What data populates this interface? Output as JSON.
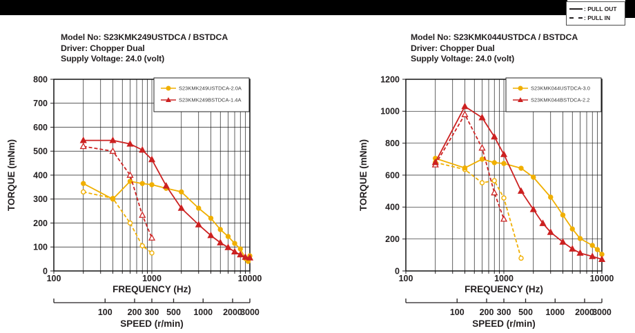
{
  "top_legend": {
    "pull_out_label": ": PULL OUT",
    "pull_in_label": ": PULL IN"
  },
  "colors": {
    "yellow": "#F0AF00",
    "red": "#CC2121",
    "text": "#231F20"
  },
  "chart_data": [
    {
      "type": "line",
      "title_lines": [
        "Model No: S23KMK249USTDCA / BSTDCA",
        "Driver: Chopper Dual",
        "Supply Voltage: 24.0 (volt)"
      ],
      "x_axis": {
        "label": "FREQUENCY (Hz)",
        "scale": "log",
        "min": 100,
        "max": 10000,
        "tick_labels": [
          100,
          1000,
          10000
        ]
      },
      "y_axis": {
        "label": "TORQUE (mNm)",
        "min": 0,
        "max": 800,
        "step": 100,
        "tick_labels": [
          0,
          100,
          200,
          300,
          400,
          500,
          600,
          700,
          800
        ]
      },
      "speed_axis": {
        "label": "SPEED (r/min)",
        "tick_labels": [
          100,
          200,
          300,
          500,
          1000,
          2000,
          3000
        ],
        "hz_per_rmin": 3.3333
      },
      "legend": [
        {
          "label": "S23KMK249USTDCA-2.0A",
          "color": "#F0AF00",
          "marker": "circle"
        },
        {
          "label": "S23KMK249BSTDCA-1.4A",
          "color": "#CC2121",
          "marker": "triangle"
        }
      ],
      "series": [
        {
          "name": "S23KMK249USTDCA-2.0A-pull-in",
          "pull": "PULL IN",
          "color": "#F0AF00",
          "style": "dashed",
          "marker": "circle",
          "fill": false,
          "x": [
            200,
            400,
            600,
            800,
            1000
          ],
          "y": [
            330,
            303,
            200,
            105,
            75
          ]
        },
        {
          "name": "S23KMK249USTDCA-2.0A-pull-out",
          "pull": "PULL OUT",
          "color": "#F0AF00",
          "style": "solid",
          "marker": "circle",
          "fill": true,
          "x": [
            200,
            400,
            600,
            800,
            1000,
            1400,
            2000,
            3000,
            4000,
            5000,
            6000,
            7000,
            8000,
            9000,
            9600,
            10000
          ],
          "y": [
            365,
            300,
            374,
            365,
            360,
            345,
            330,
            262,
            220,
            173,
            144,
            115,
            92,
            52,
            40,
            63
          ]
        },
        {
          "name": "S23KMK249BSTDCA-1.4A-pull-in",
          "pull": "PULL IN",
          "color": "#CC2121",
          "style": "dashed",
          "marker": "triangle",
          "fill": false,
          "x": [
            200,
            400,
            600,
            800,
            1000
          ],
          "y": [
            520,
            500,
            400,
            233,
            138
          ]
        },
        {
          "name": "S23KMK249BSTDCA-1.4A-pull-out",
          "pull": "PULL OUT",
          "color": "#CC2121",
          "style": "solid",
          "marker": "triangle",
          "fill": true,
          "x": [
            200,
            400,
            600,
            800,
            1000,
            1400,
            2000,
            3000,
            4000,
            5000,
            6000,
            7000,
            8000,
            9000,
            10000
          ],
          "y": [
            545,
            545,
            530,
            505,
            465,
            355,
            262,
            193,
            148,
            118,
            98,
            80,
            68,
            58,
            55
          ]
        }
      ]
    },
    {
      "type": "line",
      "title_lines": [
        "Model No: S23KMK044USTDCA / BSTDCA",
        "Driver: Chopper Dual",
        "Supply Voltage: 24.0 (volt)"
      ],
      "x_axis": {
        "label": "FREQUENCY (Hz)",
        "scale": "log",
        "min": 100,
        "max": 10000,
        "tick_labels": [
          100,
          1000,
          10000
        ]
      },
      "y_axis": {
        "label": "TORQUE (mNm)",
        "min": 0,
        "max": 1200,
        "step": 200,
        "tick_labels": [
          0,
          200,
          400,
          600,
          800,
          1000,
          1200
        ]
      },
      "speed_axis": {
        "label": "SPEED (r/min)",
        "tick_labels": [
          100,
          200,
          300,
          500,
          1000,
          2000,
          3000
        ],
        "hz_per_rmin": 3.3333
      },
      "legend": [
        {
          "label": "S23KMK044USTDCA-3.0",
          "color": "#F0AF00",
          "marker": "circle"
        },
        {
          "label": "S23KMK044BSTDCA-2.2",
          "color": "#CC2121",
          "marker": "triangle"
        }
      ],
      "series": [
        {
          "name": "S23KMK044USTDCA-3.0-pull-in",
          "pull": "PULL IN",
          "color": "#F0AF00",
          "style": "dashed",
          "marker": "circle",
          "fill": false,
          "x": [
            200,
            400,
            600,
            800,
            1000,
            1500
          ],
          "y": [
            680,
            635,
            552,
            565,
            457,
            80
          ]
        },
        {
          "name": "S23KMK044USTDCA-3.0-pull-out",
          "pull": "PULL OUT",
          "color": "#F0AF00",
          "style": "solid",
          "marker": "circle",
          "fill": true,
          "x": [
            200,
            400,
            600,
            800,
            1000,
            1500,
            2000,
            3000,
            4000,
            5000,
            6000,
            8000,
            9000,
            10000
          ],
          "y": [
            705,
            645,
            700,
            678,
            673,
            643,
            587,
            462,
            350,
            263,
            203,
            160,
            134,
            104
          ]
        },
        {
          "name": "S23KMK044BSTDCA-2.2-pull-in",
          "pull": "PULL IN",
          "color": "#CC2121",
          "style": "dashed",
          "marker": "triangle",
          "fill": false,
          "x": [
            200,
            400,
            600,
            800,
            1000
          ],
          "y": [
            665,
            980,
            770,
            490,
            325
          ]
        },
        {
          "name": "S23KMK044BSTDCA-2.2-pull-out",
          "pull": "PULL OUT",
          "color": "#CC2121",
          "style": "solid",
          "marker": "triangle",
          "fill": true,
          "x": [
            200,
            400,
            600,
            800,
            1000,
            1500,
            2000,
            2500,
            3000,
            4000,
            5000,
            6000,
            8000,
            10000
          ],
          "y": [
            680,
            1030,
            960,
            840,
            730,
            500,
            385,
            298,
            242,
            181,
            138,
            112,
            91,
            73
          ]
        }
      ]
    }
  ]
}
